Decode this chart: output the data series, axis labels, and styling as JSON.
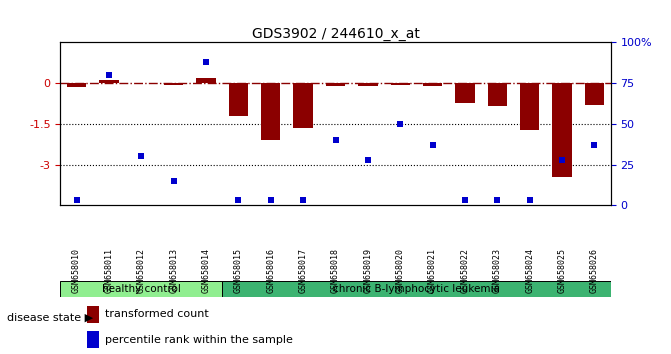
{
  "title": "GDS3902 / 244610_x_at",
  "samples": [
    "GSM658010",
    "GSM658011",
    "GSM658012",
    "GSM658013",
    "GSM658014",
    "GSM658015",
    "GSM658016",
    "GSM658017",
    "GSM658018",
    "GSM658019",
    "GSM658020",
    "GSM658021",
    "GSM658022",
    "GSM658023",
    "GSM658024",
    "GSM658025",
    "GSM658026"
  ],
  "bar_values": [
    -0.15,
    0.12,
    0.02,
    -0.05,
    0.18,
    -1.2,
    -2.1,
    -1.65,
    -0.12,
    -0.12,
    -0.05,
    -0.1,
    -0.72,
    -0.85,
    -1.72,
    -3.45,
    -0.82
  ],
  "dot_values": [
    3,
    80,
    30,
    15,
    88,
    3,
    3,
    3,
    40,
    28,
    50,
    37,
    3,
    3,
    3,
    28,
    37
  ],
  "ylim_left": [
    -4.5,
    1.5
  ],
  "ylim_right": [
    0,
    100
  ],
  "yticks_left": [
    0,
    -1.5,
    -3
  ],
  "yticks_right": [
    0,
    25,
    50,
    75,
    100
  ],
  "hline_y": 0,
  "dotted_lines": [
    -1.5,
    -3.0
  ],
  "bar_color": "#8B0000",
  "dot_color": "#0000CD",
  "hline_color": "#8B0000",
  "hline_style": "-.",
  "group1_label": "healthy control",
  "group2_label": "chronic B-lymphocytic leukemia",
  "group1_color": "#90EE90",
  "group2_color": "#3CB371",
  "disease_state_label": "disease state",
  "n_group1": 5,
  "n_group2": 12,
  "legend_bar_label": "transformed count",
  "legend_dot_label": "percentile rank within the sample",
  "background_color": "#ffffff",
  "tick_color_left": "#CC0000",
  "tick_color_right": "#0000CC",
  "bar_width": 0.6,
  "fig_width": 6.71,
  "fig_height": 3.54,
  "fig_dpi": 100
}
